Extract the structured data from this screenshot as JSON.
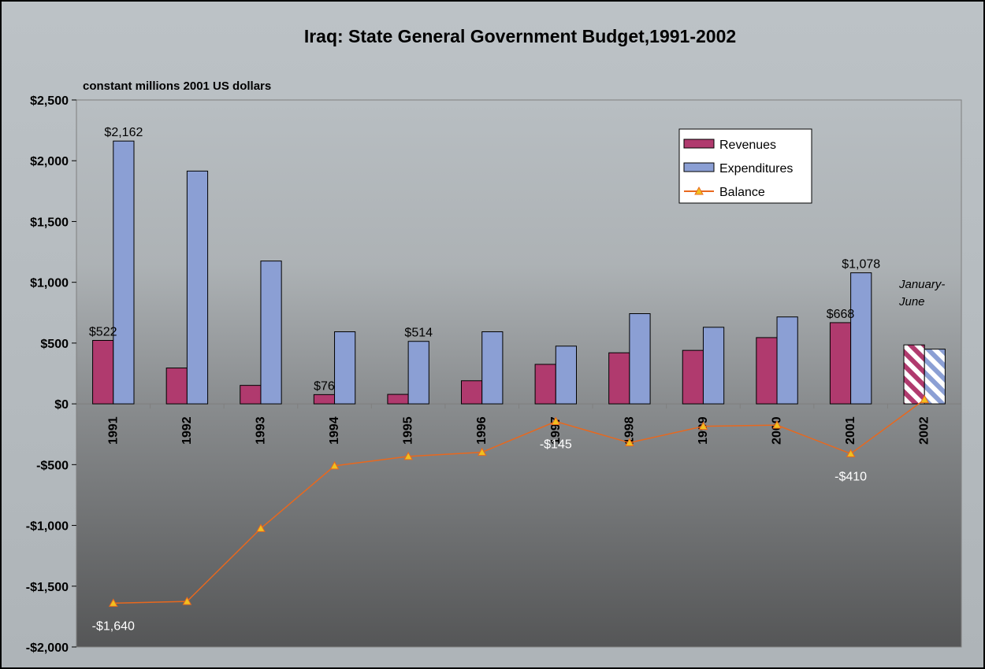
{
  "chart_data": {
    "type": "bar",
    "title": "Iraq:  State General Government Budget,1991-2002",
    "ylabel": "constant millions 2001 US dollars",
    "xlabel": "",
    "categories": [
      "1991",
      "1992",
      "1993",
      "1994",
      "1995",
      "1996",
      "1997",
      "1998",
      "1999",
      "2000",
      "2001",
      "2002"
    ],
    "series": [
      {
        "name": "Revenues",
        "kind": "bar",
        "color": "#b03a6e",
        "values": [
          522,
          295,
          152,
          76,
          78,
          190,
          325,
          420,
          440,
          545,
          668,
          485
        ]
      },
      {
        "name": "Expenditures",
        "kind": "bar",
        "color": "#8b9fd4",
        "values": [
          2162,
          1915,
          1175,
          593,
          514,
          593,
          475,
          742,
          630,
          715,
          1078,
          450
        ]
      },
      {
        "name": "Balance",
        "kind": "line",
        "color": "#e8681e",
        "values": [
          -1640,
          -1625,
          -1025,
          -510,
          -432,
          -398,
          -145,
          -320,
          -185,
          -175,
          -410,
          35
        ]
      }
    ],
    "hatched_category": "2002",
    "ylim": [
      -2000,
      2500
    ],
    "yticks": [
      2500,
      2000,
      1500,
      1000,
      500,
      0,
      -500,
      -1000,
      -1500,
      -2000
    ],
    "ytick_labels": [
      "$2,500",
      "$2,000",
      "$1,500",
      "$1,000",
      "$500",
      "$0",
      "-$500",
      "-$1,000",
      "-$1,500",
      "-$2,000"
    ],
    "data_labels": [
      {
        "series": "Expenditures",
        "category": "1991",
        "text": "$2,162",
        "color": "#000000"
      },
      {
        "series": "Revenues",
        "category": "1991",
        "text": "$522",
        "color": "#000000"
      },
      {
        "series": "Revenues",
        "category": "1994",
        "text": "$76",
        "color": "#000000"
      },
      {
        "series": "Expenditures",
        "category": "1995",
        "text": "$514",
        "color": "#000000"
      },
      {
        "series": "Expenditures",
        "category": "2001",
        "text": "$1,078",
        "color": "#000000"
      },
      {
        "series": "Revenues",
        "category": "2001",
        "text": "$668",
        "color": "#000000"
      },
      {
        "series": "Balance",
        "category": "1991",
        "text": "-$1,640",
        "color": "#ffffff"
      },
      {
        "series": "Balance",
        "category": "1997",
        "text": "-$145",
        "color": "#ffffff"
      },
      {
        "series": "Balance",
        "category": "2001",
        "text": "-$410",
        "color": "#ffffff"
      }
    ],
    "annotation": {
      "category": "2002",
      "lines": [
        "January-",
        "June"
      ]
    },
    "legend": {
      "placement": "top-right",
      "entries": [
        "Revenues",
        "Expenditures",
        "Balance"
      ]
    },
    "grid": false
  }
}
